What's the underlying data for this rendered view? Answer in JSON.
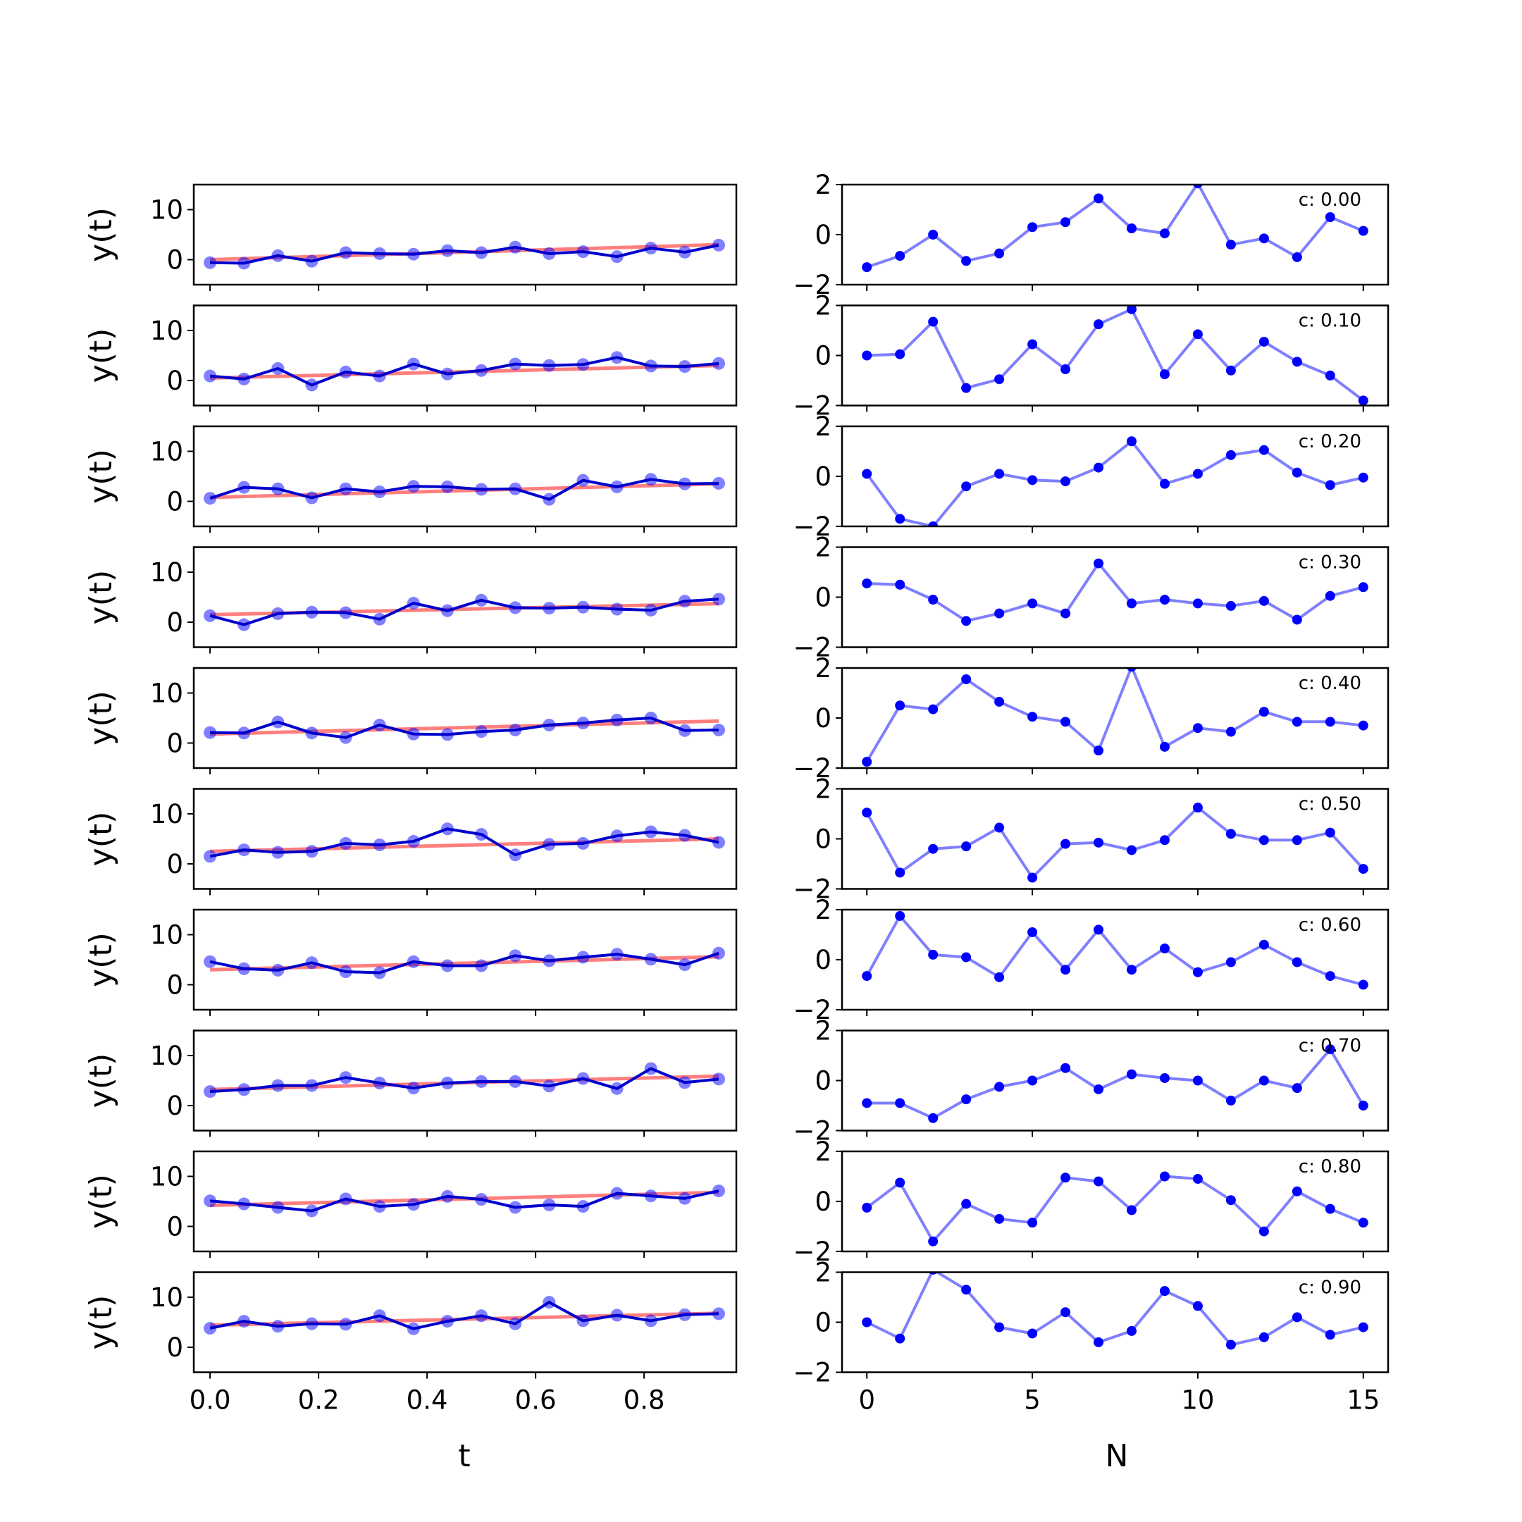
{
  "chart_data": {
    "type": "line",
    "x_label": "t",
    "y_label": "y(t)",
    "n_label": "N",
    "left_xticks": [
      "0.0",
      "0.2",
      "0.4",
      "0.6",
      "0.8"
    ],
    "left_yticks": [
      "0",
      "10"
    ],
    "right_xticks": [
      "0",
      "5",
      "10",
      "15"
    ],
    "right_yticks": [
      "−2",
      "0",
      "2"
    ],
    "left_ylim": [
      -5,
      15
    ],
    "left_xlim": [
      -0.03,
      0.97
    ],
    "right_ylim": [
      -2,
      2
    ],
    "right_xlim": [
      -0.75,
      15.75
    ],
    "t": [
      0.0,
      0.0625,
      0.125,
      0.1875,
      0.25,
      0.3125,
      0.375,
      0.4375,
      0.5,
      0.5625,
      0.625,
      0.6875,
      0.75,
      0.8125,
      0.875,
      0.9375
    ],
    "n": [
      0,
      1,
      2,
      3,
      4,
      5,
      6,
      7,
      8,
      9,
      10,
      11,
      12,
      13,
      14,
      15
    ],
    "colors": {
      "data": "#0000ff",
      "trend": "#ff0000",
      "residual": "#0000ff"
    },
    "rows": [
      {
        "annotation": "c: 0.00",
        "trend": [
          0.0,
          3.0
        ],
        "y": [
          -0.6,
          -0.7,
          0.8,
          -0.3,
          1.4,
          1.2,
          1.1,
          1.8,
          1.4,
          2.5,
          1.2,
          1.6,
          0.6,
          2.3,
          1.5,
          2.9
        ],
        "residual": [
          -1.3,
          -0.85,
          0.0,
          -1.05,
          -0.75,
          0.3,
          0.5,
          1.45,
          0.25,
          0.05,
          2.05,
          -0.4,
          -0.15,
          -0.9,
          0.7,
          0.15
        ]
      },
      {
        "annotation": "c: 0.10",
        "trend": [
          0.5,
          3.0
        ],
        "y": [
          0.9,
          0.3,
          2.4,
          -0.9,
          1.7,
          0.9,
          3.3,
          1.3,
          2.0,
          3.3,
          3.0,
          3.2,
          4.6,
          2.9,
          2.8,
          3.4
        ],
        "residual": [
          0.0,
          0.05,
          1.35,
          -1.3,
          -0.95,
          0.45,
          -0.55,
          1.25,
          1.85,
          -0.75,
          0.85,
          -0.6,
          0.55,
          -0.25,
          -0.8,
          -1.8
        ]
      },
      {
        "annotation": "c: 0.20",
        "trend": [
          0.8,
          3.5
        ],
        "y": [
          0.6,
          2.8,
          2.5,
          0.7,
          2.5,
          1.9,
          3.0,
          2.9,
          2.4,
          2.5,
          0.4,
          4.2,
          2.9,
          4.4,
          3.5,
          3.6
        ],
        "residual": [
          0.1,
          -1.7,
          -2.0,
          -0.4,
          0.1,
          -0.15,
          -0.2,
          0.35,
          1.4,
          -0.3,
          0.1,
          0.85,
          1.05,
          0.15,
          -0.35,
          -0.05
        ]
      },
      {
        "annotation": "c: 0.30",
        "trend": [
          1.5,
          3.7
        ],
        "y": [
          1.3,
          -0.5,
          1.7,
          2.0,
          1.9,
          0.6,
          3.8,
          2.3,
          4.4,
          2.9,
          2.8,
          3.0,
          2.6,
          2.4,
          4.2,
          4.6
        ],
        "residual": [
          0.55,
          0.5,
          -0.1,
          -0.95,
          -0.65,
          -0.25,
          -0.65,
          1.35,
          -0.25,
          -0.1,
          -0.25,
          -0.35,
          -0.15,
          -0.9,
          0.05,
          0.4
        ]
      },
      {
        "annotation": "c: 0.40",
        "trend": [
          1.8,
          4.4
        ],
        "y": [
          2.1,
          2.0,
          4.2,
          2.0,
          1.1,
          3.6,
          1.8,
          1.7,
          2.3,
          2.6,
          3.6,
          4.0,
          4.6,
          5.0,
          2.5,
          2.6
        ],
        "residual": [
          -1.75,
          0.5,
          0.35,
          1.55,
          0.65,
          0.05,
          -0.15,
          -1.3,
          2.05,
          -1.15,
          -0.4,
          -0.55,
          0.25,
          -0.15,
          -0.15,
          -0.3
        ]
      },
      {
        "annotation": "c: 0.50",
        "trend": [
          2.5,
          5.0
        ],
        "y": [
          1.5,
          2.8,
          2.3,
          2.5,
          4.1,
          3.8,
          4.5,
          7.0,
          5.9,
          1.8,
          3.9,
          4.1,
          5.6,
          6.4,
          5.7,
          4.3
        ],
        "residual": [
          1.05,
          -1.35,
          -0.4,
          -0.3,
          0.45,
          -1.55,
          -0.2,
          -0.15,
          -0.45,
          -0.05,
          1.25,
          0.2,
          -0.05,
          -0.05,
          0.25,
          -1.2
        ]
      },
      {
        "annotation": "c: 0.60",
        "trend": [
          3.0,
          5.6
        ],
        "y": [
          4.6,
          3.2,
          2.9,
          4.4,
          2.6,
          2.4,
          4.6,
          3.8,
          3.8,
          5.8,
          4.8,
          5.5,
          6.1,
          5.1,
          4.0,
          6.3
        ],
        "residual": [
          -0.65,
          1.75,
          0.2,
          0.1,
          -0.7,
          1.1,
          -0.4,
          1.2,
          -0.4,
          0.45,
          -0.5,
          -0.1,
          0.6,
          -0.1,
          -0.65,
          -1.0
        ]
      },
      {
        "annotation": "c: 0.70",
        "trend": [
          3.2,
          5.9
        ],
        "y": [
          2.8,
          3.2,
          4.0,
          4.0,
          5.6,
          4.5,
          3.5,
          4.5,
          4.8,
          4.8,
          3.9,
          5.4,
          3.4,
          7.4,
          4.6,
          5.3
        ],
        "residual": [
          -0.9,
          -0.9,
          -1.5,
          -0.75,
          -0.25,
          0.0,
          0.5,
          -0.35,
          0.25,
          0.1,
          0.0,
          -0.8,
          0.0,
          -0.3,
          1.25,
          -1.0
        ]
      },
      {
        "annotation": "c: 0.80",
        "trend": [
          4.2,
          6.8
        ],
        "y": [
          5.1,
          4.5,
          3.8,
          3.1,
          5.5,
          4.0,
          4.4,
          6.0,
          5.4,
          3.8,
          4.3,
          4.0,
          6.6,
          6.1,
          5.6,
          7.1
        ],
        "residual": [
          -0.25,
          0.75,
          -1.6,
          -0.1,
          -0.7,
          -0.85,
          0.95,
          0.8,
          -0.35,
          1.0,
          0.9,
          0.05,
          -1.2,
          0.4,
          -0.3,
          -0.85
        ]
      },
      {
        "annotation": "c: 0.90",
        "trend": [
          4.4,
          6.8
        ],
        "y": [
          3.8,
          5.2,
          4.2,
          4.7,
          4.6,
          6.3,
          3.7,
          5.2,
          6.3,
          4.7,
          9.0,
          5.3,
          6.4,
          5.3,
          6.5,
          6.7
        ],
        "residual": [
          0.0,
          -0.65,
          2.1,
          1.3,
          -0.2,
          -0.45,
          0.4,
          -0.8,
          -0.35,
          1.25,
          0.65,
          -0.9,
          -0.6,
          0.2,
          -0.5,
          -0.2
        ]
      }
    ]
  }
}
